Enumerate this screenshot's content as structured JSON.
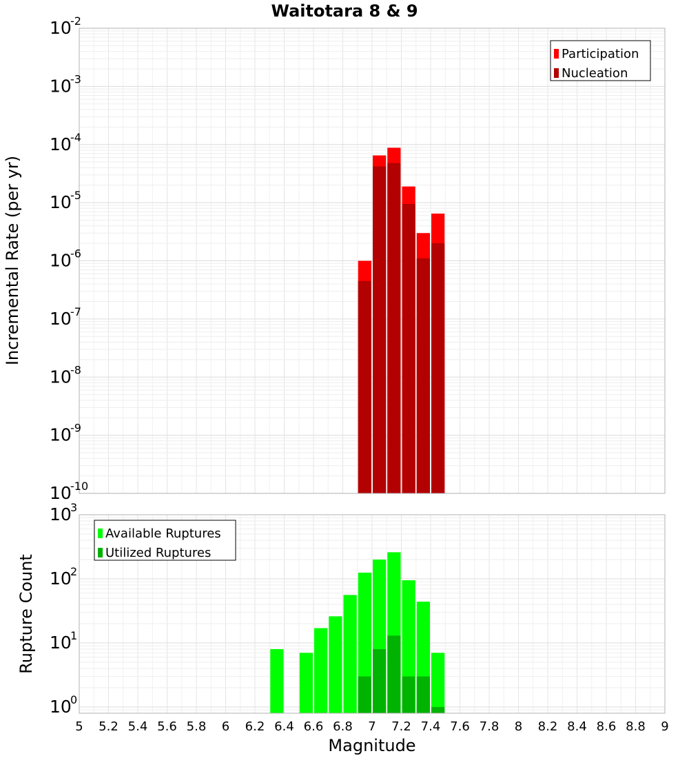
{
  "chart_data": [
    {
      "type": "bar",
      "title": "Waitotara 8 & 9",
      "ylabel": "Incremental Rate (per yr)",
      "xlabel": "",
      "y_scale": "log",
      "ylim": [
        1e-10,
        0.01
      ],
      "xlim": [
        5,
        9
      ],
      "y_tick_exponents": [
        "-10",
        "-9",
        "-8",
        "-7",
        "-6",
        "-5",
        "-4",
        "-3",
        "-2"
      ],
      "grid": true,
      "legend_position": "top-right",
      "bar_width": 0.1,
      "series": [
        {
          "name": "Participation",
          "color": "#ff0000",
          "x": [
            6.95,
            7.05,
            7.15,
            7.25,
            7.35,
            7.45
          ],
          "values": [
            1e-06,
            6.5e-05,
            8.8e-05,
            1.9e-05,
            3e-06,
            6.5e-06
          ]
        },
        {
          "name": "Nucleation",
          "color": "#b30000",
          "x": [
            6.95,
            7.05,
            7.15,
            7.25,
            7.35,
            7.45
          ],
          "values": [
            4.5e-07,
            4.2e-05,
            4.8e-05,
            9.5e-06,
            1.1e-06,
            2e-06
          ]
        }
      ]
    },
    {
      "type": "bar",
      "title": "",
      "ylabel": "Rupture Count",
      "xlabel": "Magnitude",
      "y_scale": "log",
      "ylim": [
        0.8,
        1000
      ],
      "xlim": [
        5,
        9
      ],
      "y_tick_exponents": [
        "0",
        "1",
        "2",
        "3"
      ],
      "x_ticks": [
        "5",
        "5.2",
        "5.4",
        "5.6",
        "5.8",
        "6",
        "6.2",
        "6.4",
        "6.6",
        "6.8",
        "7",
        "7.2",
        "7.4",
        "7.6",
        "7.8",
        "8",
        "8.2",
        "8.4",
        "8.6",
        "8.8",
        "9"
      ],
      "grid": true,
      "legend_position": "top-left",
      "bar_width": 0.1,
      "series": [
        {
          "name": "Available Ruptures",
          "color": "#00ff00",
          "x": [
            6.35,
            6.55,
            6.65,
            6.75,
            6.85,
            6.95,
            7.05,
            7.15,
            7.25,
            7.35,
            7.45
          ],
          "values": [
            8,
            7,
            17,
            26,
            56,
            125,
            200,
            260,
            95,
            44,
            7
          ]
        },
        {
          "name": "Utilized Ruptures",
          "color": "#00b300",
          "x": [
            6.95,
            7.05,
            7.15,
            7.25,
            7.35,
            7.45
          ],
          "values": [
            3,
            8,
            13,
            3,
            3,
            1
          ]
        }
      ]
    }
  ]
}
